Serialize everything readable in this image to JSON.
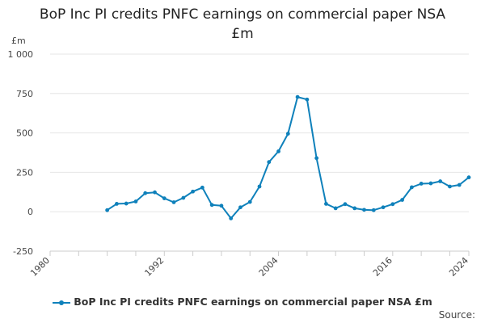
{
  "page": {
    "title_line1": "BoP Inc PI credits PNFC earnings on commercial paper NSA",
    "title_line2": "£m",
    "y_unit": "£m",
    "source_label": "Source:"
  },
  "colors": {
    "series": "#0f81bb",
    "grid": "#e6e6e6",
    "axis": "#cccccc",
    "text": "#444444"
  },
  "chart_data": {
    "type": "line",
    "title": "BoP Inc PI credits PNFC earnings on commercial paper NSA £m",
    "ylabel": "£m",
    "xlim": [
      1980,
      2024
    ],
    "ylim": [
      -250,
      1000
    ],
    "grid": "horizontal",
    "legend_placement": "bottom",
    "x_ticks": [
      1980,
      1992,
      2004,
      2016,
      2024
    ],
    "x_minor_ticks": [
      1980,
      1983,
      1986,
      1989,
      1992,
      1995,
      1998,
      2001,
      2004,
      2007,
      2010,
      2013,
      2016,
      2019,
      2022,
      2024
    ],
    "y_ticks": [
      {
        "value": 1000,
        "label": "1 000"
      },
      {
        "value": 750,
        "label": "750"
      },
      {
        "value": 500,
        "label": "500"
      },
      {
        "value": 250,
        "label": "250"
      },
      {
        "value": 0,
        "label": "0"
      },
      {
        "value": -250,
        "label": "-250"
      }
    ],
    "series": [
      {
        "name": "BoP Inc PI credits PNFC earnings on commercial paper NSA £m",
        "x": [
          1986,
          1987,
          1988,
          1989,
          1990,
          1991,
          1992,
          1993,
          1994,
          1995,
          1996,
          1997,
          1998,
          1999,
          2000,
          2001,
          2002,
          2003,
          2004,
          2005,
          2006,
          2007,
          2008,
          2009,
          2010,
          2011,
          2012,
          2013,
          2014,
          2015,
          2016,
          2017,
          2018,
          2019,
          2020,
          2021,
          2022,
          2023,
          2024
        ],
        "values": [
          10,
          50,
          52,
          65,
          118,
          123,
          85,
          60,
          88,
          128,
          153,
          43,
          38,
          -42,
          28,
          62,
          160,
          315,
          383,
          495,
          728,
          712,
          340,
          50,
          22,
          48,
          22,
          12,
          10,
          28,
          48,
          75,
          155,
          178,
          180,
          193,
          160,
          170,
          218
        ]
      }
    ]
  }
}
